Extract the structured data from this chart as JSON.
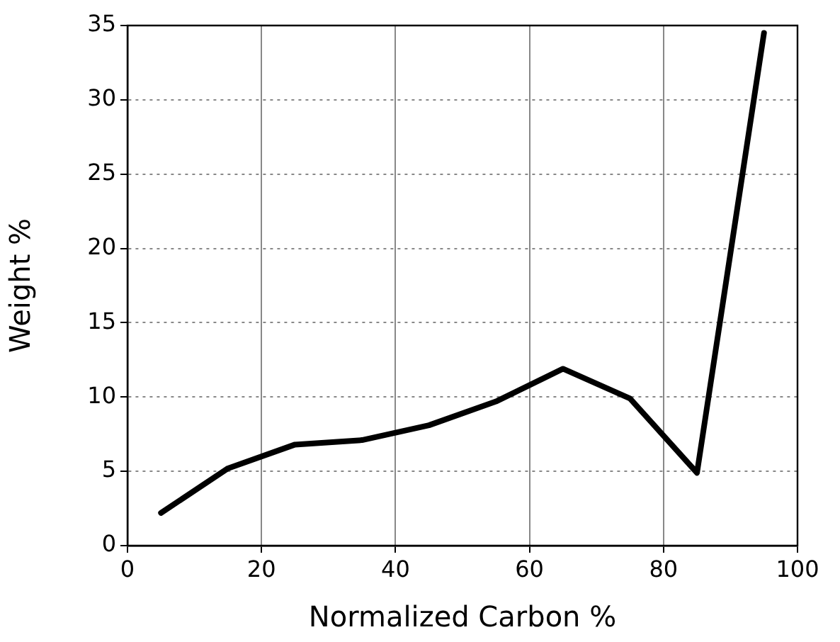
{
  "chart_data": {
    "type": "line",
    "xlabel": "Normalized Carbon %",
    "ylabel": "Weight %",
    "x": [
      5,
      15,
      25,
      35,
      45,
      55,
      65,
      75,
      85,
      95
    ],
    "series": [
      {
        "color": "#000000",
        "values": [
          2.2,
          5.2,
          6.8,
          7.1,
          8.1,
          9.7,
          11.9,
          9.9,
          4.9,
          34.5
        ]
      }
    ],
    "xlim": [
      0,
      100
    ],
    "xticks": [
      0,
      20,
      40,
      60,
      80,
      100
    ],
    "ylim": [
      0,
      35
    ],
    "yticks": [
      0,
      5,
      10,
      15,
      20,
      25,
      30,
      35
    ],
    "grid": true,
    "legend": false,
    "marker": "none",
    "line_style": "solid"
  }
}
